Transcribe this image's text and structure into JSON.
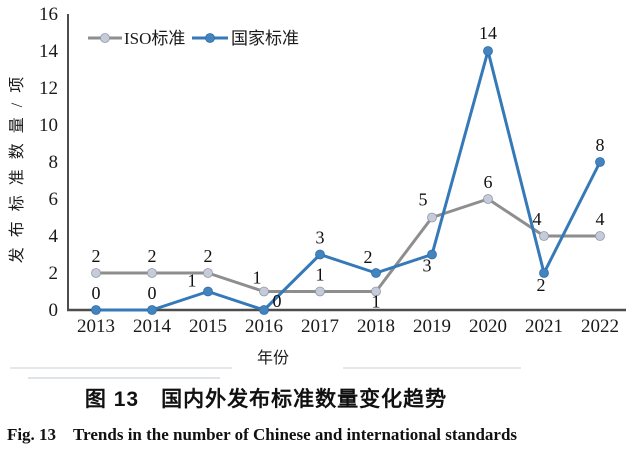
{
  "figure": {
    "caption_cn": "图 13　国内外发布标准数量变化趋势",
    "caption_en": "Fig. 13　Trends in the number of Chinese and international standards"
  },
  "chart_data": {
    "type": "line",
    "x_categories": [
      "2013",
      "2014",
      "2015",
      "2016",
      "2017",
      "2018",
      "2019",
      "2020",
      "2021",
      "2022"
    ],
    "xlabel": "年份",
    "ylabel": "发布标准数量/项",
    "ylim": [
      0,
      16
    ],
    "ytick_step": 2,
    "grid": false,
    "legend_position": "top-left-inside",
    "axis_color": "#4d4d4d",
    "text_color": "#1a1a1a",
    "data_label_color": "#111111",
    "series": [
      {
        "name": "ISO标准",
        "color": "#8e8e8e",
        "marker_fill": "#c5cbd8",
        "marker_edge": "#9099a8",
        "values": [
          2,
          2,
          2,
          1,
          1,
          1,
          5,
          6,
          4,
          4
        ],
        "label_offsets": [
          [
            0,
            -11
          ],
          [
            0,
            -11
          ],
          [
            0,
            -11
          ],
          [
            -7,
            -8
          ],
          [
            0,
            -11
          ],
          [
            0,
            16
          ],
          [
            -9,
            -12
          ],
          [
            0,
            -11
          ],
          [
            -7,
            -11
          ],
          [
            0,
            -11
          ]
        ]
      },
      {
        "name": "国家标准",
        "color": "#3579b8",
        "marker_fill": "#4384bf",
        "marker_edge": "#2e6da8",
        "values": [
          0,
          0,
          1,
          0,
          3,
          2,
          3,
          14,
          2,
          8
        ],
        "label_offsets": [
          [
            0,
            -11
          ],
          [
            0,
            -11
          ],
          [
            -16,
            -5
          ],
          [
            13,
            -3
          ],
          [
            0,
            -11
          ],
          [
            -8,
            -10
          ],
          [
            -5,
            17
          ],
          [
            0,
            -12
          ],
          [
            -3,
            18
          ],
          [
            0,
            -11
          ]
        ]
      }
    ]
  }
}
